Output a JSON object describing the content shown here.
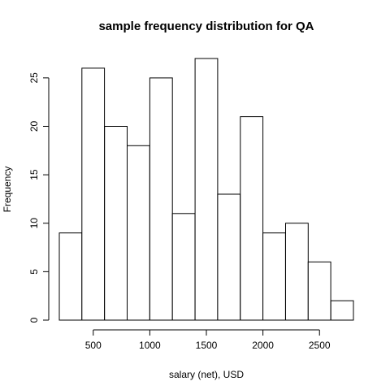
{
  "chart_data": {
    "type": "bar",
    "title": "sample frequency distribution for QA",
    "xlabel": "salary (net), USD",
    "ylabel": "Frequency",
    "bin_edges": [
      200,
      400,
      600,
      800,
      1000,
      1200,
      1400,
      1600,
      1800,
      2000,
      2200,
      2400,
      2600,
      2800
    ],
    "values": [
      9,
      26,
      20,
      18,
      25,
      11,
      27,
      13,
      21,
      9,
      10,
      6,
      2
    ],
    "xlim": [
      200,
      2800
    ],
    "ylim": [
      0,
      27
    ],
    "x_ticks": [
      500,
      1000,
      1500,
      2000,
      2500
    ],
    "y_ticks": [
      0,
      5,
      10,
      15,
      20,
      25
    ],
    "grid": false,
    "legend": "none",
    "bar_fill": "#ffffff",
    "bar_stroke": "#000000"
  }
}
